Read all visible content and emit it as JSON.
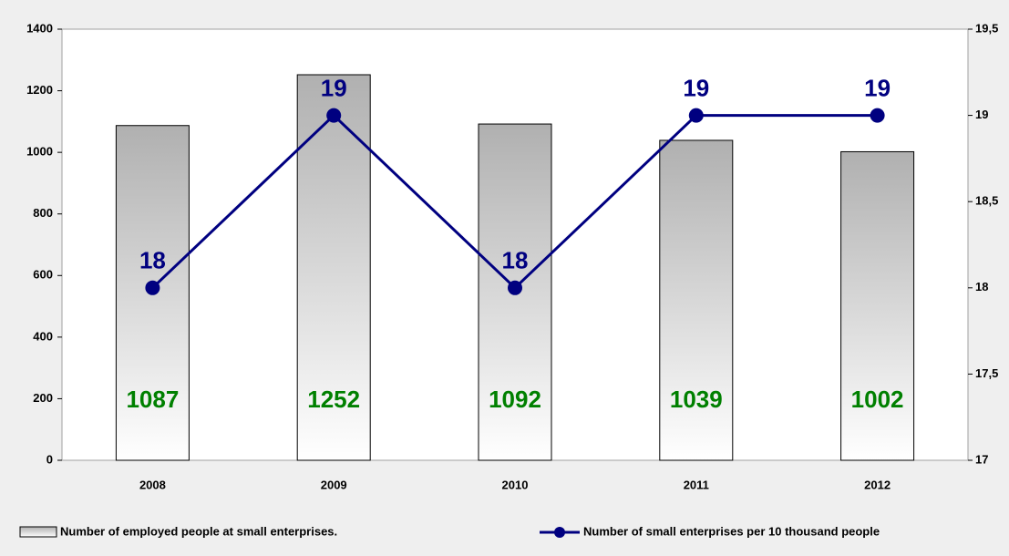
{
  "chart_data": {
    "type": "combo",
    "categories": [
      "2008",
      "2009",
      "2010",
      "2011",
      "2012"
    ],
    "series": [
      {
        "name": "Number of employed people at small enterprises.",
        "type": "bar",
        "color": "#b0b0b0",
        "label_color": "#008000",
        "values": [
          1087,
          1252,
          1092,
          1039,
          1002
        ]
      },
      {
        "name": "Number of small enterprises per 10 thousand people",
        "type": "line",
        "axis": "y2",
        "color": "#000080",
        "label_color": "#000080",
        "values": [
          18,
          19,
          18,
          19,
          19
        ]
      }
    ],
    "ylim": [
      0,
      1400
    ],
    "yticks": [
      0,
      200,
      400,
      600,
      800,
      1000,
      1200,
      1400
    ],
    "y2lim": [
      17,
      19.5
    ],
    "y2ticks": [
      17,
      {
        "value": 17.5,
        "label": "17,5"
      },
      18,
      {
        "value": 18.5,
        "label": "18,5"
      },
      19,
      {
        "value": 19.5,
        "label": "19,5"
      }
    ],
    "legend": "bottom"
  }
}
